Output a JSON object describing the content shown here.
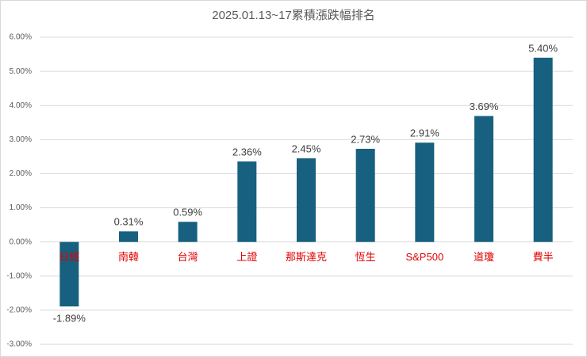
{
  "chart_data": {
    "type": "bar",
    "title": "2025.01.13~17累積漲跌幅排名",
    "categories": [
      "日經",
      "南韓",
      "台灣",
      "上證",
      "那斯達克",
      "恆生",
      "S&P500",
      "道瓊",
      "費半"
    ],
    "values": [
      -1.89,
      0.31,
      0.59,
      2.36,
      2.45,
      2.73,
      2.91,
      3.69,
      5.4
    ],
    "value_labels": [
      "-1.89%",
      "0.31%",
      "0.59%",
      "2.36%",
      "2.45%",
      "2.73%",
      "2.91%",
      "3.69%",
      "5.40%"
    ],
    "color": "#17607f",
    "category_color": "#e00000",
    "ylim": [
      -3,
      6
    ],
    "yticks": [
      {
        "value": -3,
        "label": "-3.00%"
      },
      {
        "value": -2,
        "label": "-2.00%"
      },
      {
        "value": -1,
        "label": "-1.00%"
      },
      {
        "value": 0,
        "label": "0.00%"
      },
      {
        "value": 1,
        "label": "1.00%"
      },
      {
        "value": 2,
        "label": "2.00%"
      },
      {
        "value": 3,
        "label": "3.00%"
      },
      {
        "value": 4,
        "label": "4.00%"
      },
      {
        "value": 5,
        "label": "5.00%"
      },
      {
        "value": 6,
        "label": "6.00%"
      }
    ],
    "grid": true
  }
}
